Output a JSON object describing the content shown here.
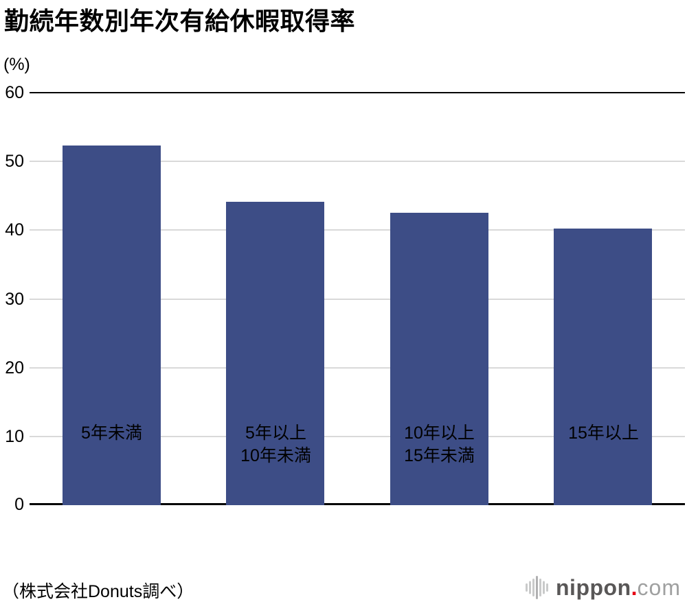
{
  "chart_data": {
    "type": "bar",
    "title": "勤続年数別年次有給休暇取得率",
    "unit_label": "(%)",
    "categories": [
      [
        "5年未満"
      ],
      [
        "5年以上",
        "10年未満"
      ],
      [
        "10年以上",
        "15年未満"
      ],
      [
        "15年以上"
      ]
    ],
    "values": [
      52.3,
      44.1,
      42.5,
      40.2
    ],
    "xlabel": "",
    "ylabel": "(%)",
    "ylim": [
      0,
      60
    ],
    "yticks": [
      0,
      10,
      20,
      30,
      40,
      50,
      60
    ],
    "grid": "horizontal",
    "legend": "none",
    "bar_color": "#3d4d86",
    "axis_color": "#000000",
    "gridline_color": "#d9d9d9"
  },
  "footer": {
    "source": "（株式会社Donuts調べ）",
    "logo": {
      "brand": "nippon",
      "dot": ".",
      "tld": "com",
      "brand_color": "#595757",
      "dot_color": "#e60012",
      "tld_color": "#9fa0a0",
      "icon_color": "#c9caca",
      "icon_center_color": "#b0b0b1"
    }
  }
}
